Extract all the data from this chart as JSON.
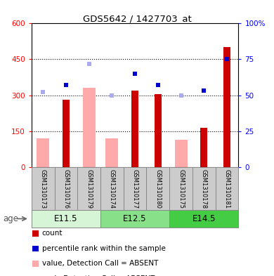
{
  "title": "GDS5642 / 1427703_at",
  "samples": [
    "GSM1310173",
    "GSM1310176",
    "GSM1310179",
    "GSM1310174",
    "GSM1310177",
    "GSM1310180",
    "GSM1310175",
    "GSM1310178",
    "GSM1310181"
  ],
  "age_groups": [
    {
      "label": "E11.5",
      "start": 0,
      "end": 3,
      "color": "#d6f5d6"
    },
    {
      "label": "E12.5",
      "start": 3,
      "end": 6,
      "color": "#88e088"
    },
    {
      "label": "E14.5",
      "start": 6,
      "end": 9,
      "color": "#44cc44"
    }
  ],
  "count_values": [
    null,
    280,
    null,
    null,
    320,
    305,
    null,
    163,
    500
  ],
  "count_color": "#cc0000",
  "rank_values": [
    null,
    57,
    null,
    null,
    65,
    57,
    null,
    53,
    75
  ],
  "rank_color": "#0000cc",
  "absent_value_values": [
    120,
    null,
    330,
    120,
    null,
    null,
    115,
    null,
    null
  ],
  "absent_value_color": "#ffaaaa",
  "absent_rank_values": [
    52,
    null,
    72,
    50,
    null,
    null,
    50,
    null,
    null
  ],
  "absent_rank_color": "#aaaaee",
  "left_ylim": [
    0,
    600
  ],
  "right_ylim": [
    0,
    100
  ],
  "left_yticks": [
    0,
    150,
    300,
    450,
    600
  ],
  "right_yticks": [
    0,
    25,
    50,
    75,
    100
  ],
  "right_yticklabels": [
    "0",
    "25",
    "50",
    "75",
    "100%"
  ],
  "legend_items": [
    {
      "color": "#cc0000",
      "label": "count"
    },
    {
      "color": "#0000cc",
      "label": "percentile rank within the sample"
    },
    {
      "color": "#ffaaaa",
      "label": "value, Detection Call = ABSENT"
    },
    {
      "color": "#aaaaee",
      "label": "rank, Detection Call = ABSENT"
    }
  ]
}
